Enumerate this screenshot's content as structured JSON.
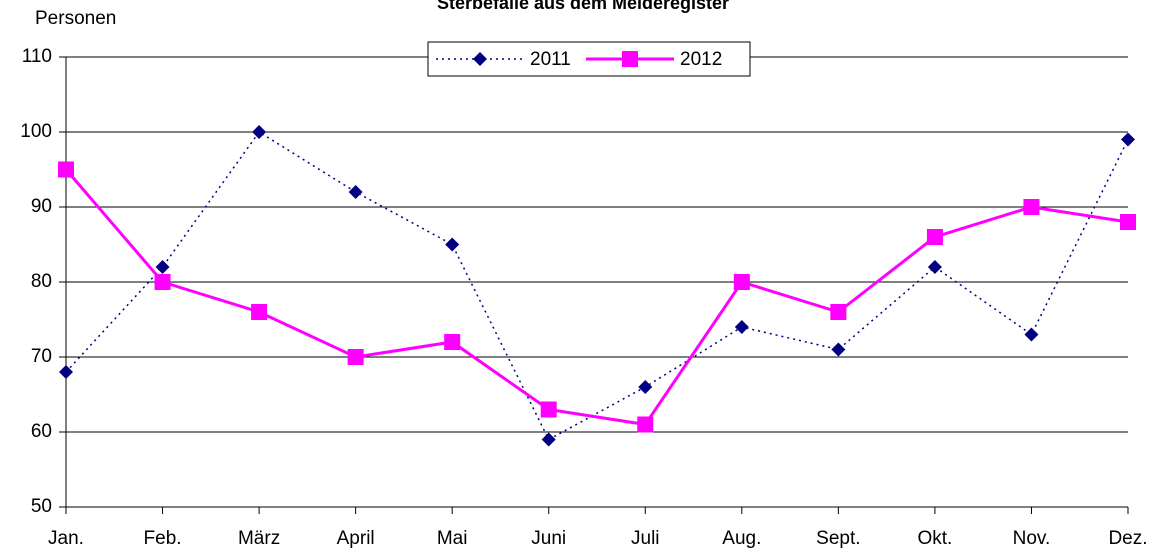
{
  "chart_data": {
    "type": "line",
    "title": "Sterbefälle aus dem Melderegister",
    "ylabel": "Personen",
    "categories": [
      "Jan.",
      "Feb.",
      "März",
      "April",
      "Mai",
      "Juni",
      "Juli",
      "Aug.",
      "Sept.",
      "Okt.",
      "Nov.",
      "Dez."
    ],
    "series": [
      {
        "name": "2011",
        "color": "#000080",
        "marker": "diamond",
        "line_style": "dotted",
        "values": [
          68,
          82,
          100,
          92,
          85,
          59,
          66,
          74,
          71,
          82,
          73,
          99
        ]
      },
      {
        "name": "2012",
        "color": "#ff00ff",
        "marker": "square",
        "line_style": "solid",
        "values": [
          95,
          80,
          76,
          70,
          72,
          63,
          61,
          80,
          76,
          86,
          90,
          88
        ]
      }
    ],
    "ylim": [
      50,
      110
    ],
    "yticks": [
      50,
      60,
      70,
      80,
      90,
      100,
      110
    ],
    "grid": true,
    "legend": "top"
  }
}
